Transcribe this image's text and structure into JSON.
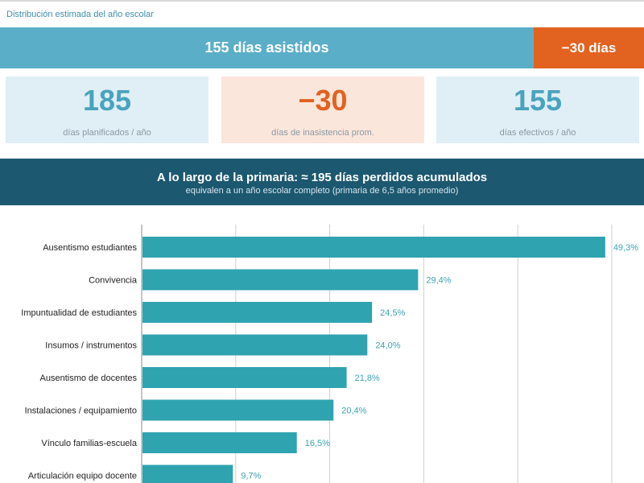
{
  "caption": "Distribución estimada del año escolar",
  "summary_bar": {
    "attended_label": "155 días asistidos",
    "lost_label": "−30 días",
    "attended_days": 155,
    "lost_days": 30
  },
  "cards": [
    {
      "value": "185",
      "label": "días planificados / año"
    },
    {
      "value": "−30",
      "label": "días de inasistencia prom."
    },
    {
      "value": "155",
      "label": "días efectivos / año"
    }
  ],
  "band": {
    "title": "A lo largo de la primaria: ≈ 195 días perdidos acumulados",
    "subtitle": "equivalen a un año escolar completo (primaria de 6,5 años promedio)"
  },
  "colors": {
    "attended": "#5aaec8",
    "lost": "#e2621f",
    "band": "#1c5870",
    "bar": "#2fa3b0"
  },
  "chart_data": {
    "type": "bar",
    "orientation": "horizontal",
    "categories": [
      "Ausentismo estudiantes",
      "Convivencia",
      "Impuntualidad de estudiantes",
      "Insumos / instrumentos",
      "Ausentismo de docentes",
      "Instalaciones / equipamiento",
      "Vínculo familias-escuela",
      "Articulación equipo docente"
    ],
    "values": [
      49.3,
      29.4,
      24.5,
      24.0,
      21.8,
      20.4,
      16.5,
      9.7
    ],
    "value_labels": [
      "49,3%",
      "29,4%",
      "24,5%",
      "24,0%",
      "21,8%",
      "20,4%",
      "16,5%",
      "9,7%"
    ],
    "xlim": [
      0,
      50
    ],
    "grid": true,
    "grid_step": 10
  }
}
